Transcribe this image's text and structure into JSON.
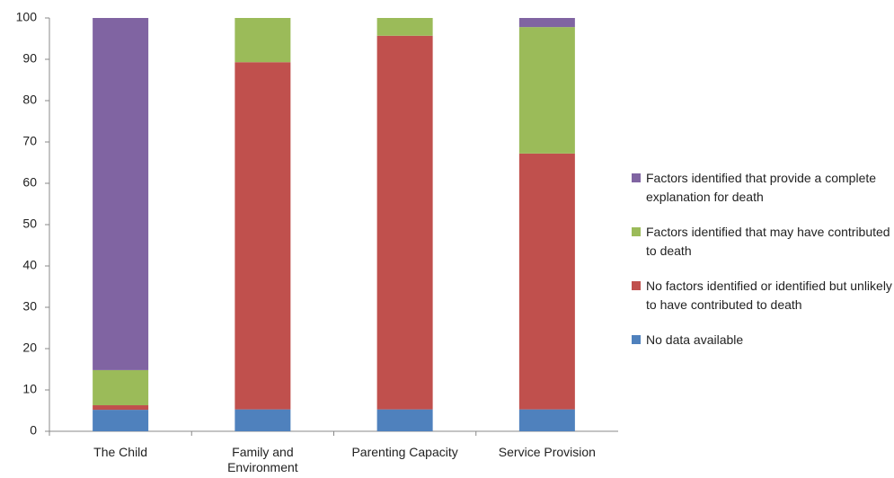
{
  "chart_data": {
    "type": "stacked_bar",
    "categories": [
      "The Child",
      "Family and Environment",
      "Parenting Capacity",
      "Service Provision"
    ],
    "series": [
      {
        "name": "No data available",
        "color": "#4f81bd",
        "values": [
          5.2,
          5.3,
          5.3,
          5.3
        ]
      },
      {
        "name": "No factors identified or identified but unlikely to have contributed to death",
        "color": "#c0504d",
        "values": [
          1.1,
          84,
          90.4,
          61.9
        ]
      },
      {
        "name": "Factors identified that may have contributed to death",
        "color": "#9bbb59",
        "values": [
          8.5,
          10.7,
          4.3,
          30.6
        ]
      },
      {
        "name": "Factors identified that provide a complete explanation for death",
        "color": "#8064a2",
        "values": [
          85.2,
          0,
          0,
          2.2
        ]
      }
    ],
    "ylim": [
      0,
      100
    ],
    "yticks": [
      0,
      10,
      20,
      30,
      40,
      50,
      60,
      70,
      80,
      90,
      100
    ],
    "grid": false,
    "legend": "right"
  }
}
